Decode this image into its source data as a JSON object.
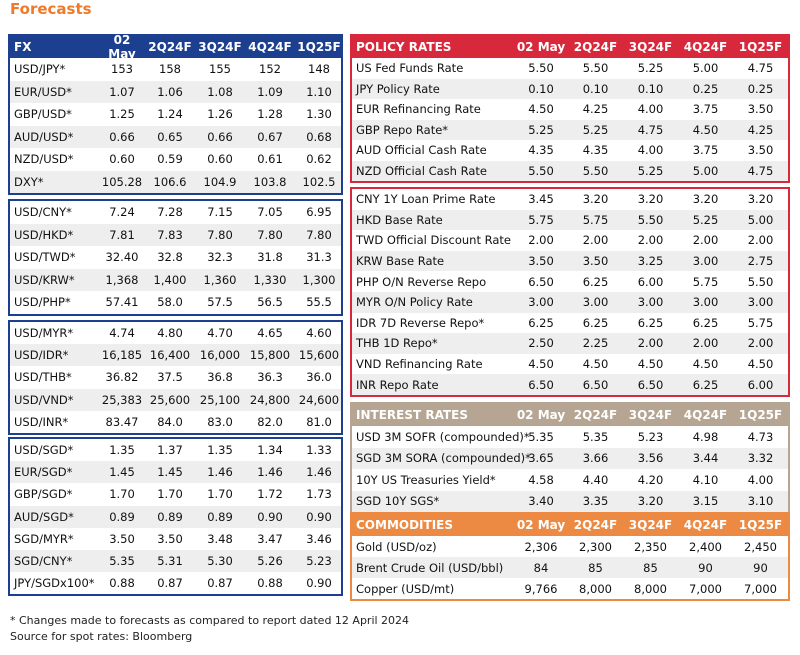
{
  "page_title": "Forecasts",
  "fx": {
    "header": [
      "FX",
      "02 May",
      "2Q24F",
      "3Q24F",
      "4Q24F",
      "1Q25F"
    ],
    "blocks": [
      [
        [
          "USD/JPY*",
          "153",
          "158",
          "155",
          "152",
          "148"
        ],
        [
          "EUR/USD*",
          "1.07",
          "1.06",
          "1.08",
          "1.09",
          "1.10"
        ],
        [
          "GBP/USD*",
          "1.25",
          "1.24",
          "1.26",
          "1.28",
          "1.30"
        ],
        [
          "AUD/USD*",
          "0.66",
          "0.65",
          "0.66",
          "0.67",
          "0.68"
        ],
        [
          "NZD/USD*",
          "0.60",
          "0.59",
          "0.60",
          "0.61",
          "0.62"
        ],
        [
          "DXY*",
          "105.28",
          "106.6",
          "104.9",
          "103.8",
          "102.5"
        ]
      ],
      [
        [
          "USD/CNY*",
          "7.24",
          "7.28",
          "7.15",
          "7.05",
          "6.95"
        ],
        [
          "USD/HKD*",
          "7.81",
          "7.83",
          "7.80",
          "7.80",
          "7.80"
        ],
        [
          "USD/TWD*",
          "32.40",
          "32.8",
          "32.3",
          "31.8",
          "31.3"
        ],
        [
          "USD/KRW*",
          "1,368",
          "1,400",
          "1,360",
          "1,330",
          "1,300"
        ],
        [
          "USD/PHP*",
          "57.41",
          "58.0",
          "57.5",
          "56.5",
          "55.5"
        ]
      ],
      [
        [
          "USD/MYR*",
          "4.74",
          "4.80",
          "4.70",
          "4.65",
          "4.60"
        ],
        [
          "USD/IDR*",
          "16,185",
          "16,400",
          "16,000",
          "15,800",
          "15,600"
        ],
        [
          "USD/THB*",
          "36.82",
          "37.5",
          "36.8",
          "36.3",
          "36.0"
        ],
        [
          "USD/VND*",
          "25,383",
          "25,600",
          "25,100",
          "24,800",
          "24,600"
        ],
        [
          "USD/INR*",
          "83.47",
          "84.0",
          "83.0",
          "82.0",
          "81.0"
        ]
      ],
      [
        [
          "USD/SGD*",
          "1.35",
          "1.37",
          "1.35",
          "1.34",
          "1.33"
        ],
        [
          "EUR/SGD*",
          "1.45",
          "1.45",
          "1.46",
          "1.46",
          "1.46"
        ],
        [
          "GBP/SGD*",
          "1.70",
          "1.70",
          "1.70",
          "1.72",
          "1.73"
        ],
        [
          "AUD/SGD*",
          "0.89",
          "0.89",
          "0.89",
          "0.90",
          "0.90"
        ],
        [
          "SGD/MYR*",
          "3.50",
          "3.50",
          "3.48",
          "3.47",
          "3.46"
        ],
        [
          "SGD/CNY*",
          "5.35",
          "5.31",
          "5.30",
          "5.26",
          "5.23"
        ],
        [
          "JPY/SGDx100*",
          "0.88",
          "0.87",
          "0.87",
          "0.88",
          "0.90"
        ]
      ]
    ]
  },
  "policy_rates": {
    "header": [
      "POLICY RATES",
      "02 May",
      "2Q24F",
      "3Q24F",
      "4Q24F",
      "1Q25F"
    ],
    "blocks": [
      [
        [
          "US Fed Funds Rate",
          "5.50",
          "5.50",
          "5.25",
          "5.00",
          "4.75"
        ],
        [
          "JPY Policy Rate",
          "0.10",
          "0.10",
          "0.10",
          "0.25",
          "0.25"
        ],
        [
          "EUR Refinancing Rate",
          "4.50",
          "4.25",
          "4.00",
          "3.75",
          "3.50"
        ],
        [
          "GBP Repo Rate*",
          "5.25",
          "5.25",
          "4.75",
          "4.50",
          "4.25"
        ],
        [
          "AUD Official Cash Rate",
          "4.35",
          "4.35",
          "4.00",
          "3.75",
          "3.50"
        ],
        [
          "NZD Official Cash Rate",
          "5.50",
          "5.50",
          "5.25",
          "5.00",
          "4.75"
        ]
      ],
      [
        [
          "CNY 1Y Loan Prime Rate",
          "3.45",
          "3.20",
          "3.20",
          "3.20",
          "3.20"
        ],
        [
          "HKD Base Rate",
          "5.75",
          "5.75",
          "5.50",
          "5.25",
          "5.00"
        ],
        [
          "TWD Official Discount Rate",
          "2.00",
          "2.00",
          "2.00",
          "2.00",
          "2.00"
        ],
        [
          "KRW Base Rate",
          "3.50",
          "3.50",
          "3.25",
          "3.00",
          "2.75"
        ],
        [
          "PHP O/N Reverse Repo",
          "6.50",
          "6.25",
          "6.00",
          "5.75",
          "5.50"
        ],
        [
          "MYR O/N Policy Rate",
          "3.00",
          "3.00",
          "3.00",
          "3.00",
          "3.00"
        ],
        [
          "IDR 7D Reverse Repo*",
          "6.25",
          "6.25",
          "6.25",
          "6.25",
          "5.75"
        ],
        [
          "THB 1D Repo*",
          "2.50",
          "2.25",
          "2.00",
          "2.00",
          "2.00"
        ],
        [
          "VND Refinancing Rate",
          "4.50",
          "4.50",
          "4.50",
          "4.50",
          "4.50"
        ],
        [
          "INR Repo Rate",
          "6.50",
          "6.50",
          "6.50",
          "6.25",
          "6.00"
        ]
      ]
    ]
  },
  "interest_rates": {
    "header": [
      "INTEREST RATES",
      "02 May",
      "2Q24F",
      "3Q24F",
      "4Q24F",
      "1Q25F"
    ],
    "rows": [
      [
        "USD 3M SOFR (compounded)*",
        "5.35",
        "5.35",
        "5.23",
        "4.98",
        "4.73"
      ],
      [
        "SGD 3M SORA (compounded)*",
        "3.65",
        "3.66",
        "3.56",
        "3.44",
        "3.32"
      ],
      [
        "10Y US Treasuries Yield*",
        "4.58",
        "4.40",
        "4.20",
        "4.10",
        "4.00"
      ],
      [
        "SGD 10Y SGS*",
        "3.40",
        "3.35",
        "3.20",
        "3.15",
        "3.10"
      ]
    ]
  },
  "commodities": {
    "header": [
      "COMMODITIES",
      "02 May",
      "2Q24F",
      "3Q24F",
      "4Q24F",
      "1Q25F"
    ],
    "rows": [
      [
        "Gold (USD/oz)",
        "2,306",
        "2,300",
        "2,350",
        "2,400",
        "2,450"
      ],
      [
        "Brent Crude Oil (USD/bbl)",
        "84",
        "85",
        "85",
        "90",
        "90"
      ],
      [
        "Copper (USD/mt)",
        "9,766",
        "8,000",
        "8,000",
        "7,000",
        "7,000"
      ]
    ]
  },
  "footer": {
    "note": "* Changes made to forecasts as compared to report dated 12 April 2024",
    "source": "Source for spot rates: Bloomberg"
  },
  "colors": {
    "fx": "#1d3f8f",
    "policy": "#d8283c",
    "interest": "#b5a592",
    "commodities": "#ec8a44"
  }
}
